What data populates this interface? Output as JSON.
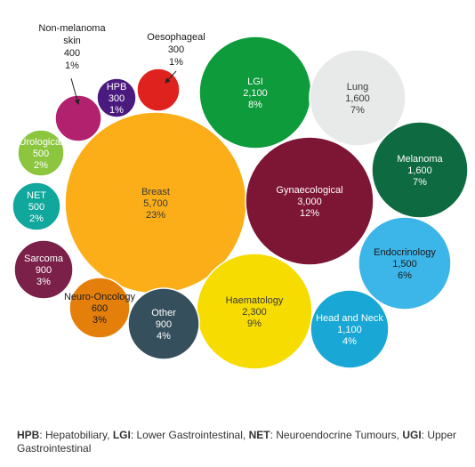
{
  "chart_data": {
    "type": "bubble",
    "unit_note": "",
    "bubbles": [
      {
        "name": "Breast",
        "value": "5,700",
        "percent": "23%",
        "color": "#FBAE17",
        "text_color": "#3a3a3a"
      },
      {
        "name": "Gynaecological",
        "value": "3,000",
        "percent": "12%",
        "color": "#7D1535",
        "text_color": "#ffffff"
      },
      {
        "name": "Haematology",
        "value": "2,300",
        "percent": "9%",
        "color": "#F6DC00",
        "text_color": "#3a3a3a"
      },
      {
        "name": "LGI",
        "value": "2,100",
        "percent": "8%",
        "color": "#0E9B3B",
        "text_color": "#ffffff"
      },
      {
        "name": "Lung",
        "value": "1,600",
        "percent": "7%",
        "color": "#E8EAEA",
        "text_color": "#3a3a3a"
      },
      {
        "name": "Melanoma",
        "value": "1,600",
        "percent": "7%",
        "color": "#0E6A40",
        "text_color": "#ffffff"
      },
      {
        "name": "Endocrinology",
        "value": "1,500",
        "percent": "6%",
        "color": "#3CB5E9",
        "text_color": "#1a1a1a"
      },
      {
        "name": "Head and Neck",
        "value": "1,100",
        "percent": "4%",
        "color": "#19A8D5",
        "text_color": "#ffffff"
      },
      {
        "name": "Other",
        "value": "900",
        "percent": "4%",
        "color": "#354F5C",
        "text_color": "#ffffff"
      },
      {
        "name": "Sarcoma",
        "value": "900",
        "percent": "3%",
        "color": "#7B2149",
        "text_color": "#ffffff"
      },
      {
        "name": "Neuro-Oncology",
        "value": "600",
        "percent": "3%",
        "color": "#E57F0B",
        "text_color": "#1a1a1a"
      },
      {
        "name": "Urological",
        "value": "500",
        "percent": "2%",
        "color": "#8CC63F",
        "text_color": "#ffffff"
      },
      {
        "name": "NET",
        "value": "500",
        "percent": "2%",
        "color": "#10A79C",
        "text_color": "#ffffff"
      },
      {
        "name": "Non-melanoma skin",
        "label_lines": [
          "Non-melanoma",
          "skin"
        ],
        "value": "400",
        "percent": "1%",
        "color": "#B2216E",
        "text_color": "#1a1a1a",
        "label_outside": true
      },
      {
        "name": "HPB",
        "value": "300",
        "percent": "1%",
        "color": "#4B1A7E",
        "text_color": "#ffffff"
      },
      {
        "name": "Oesophageal",
        "value": "300",
        "percent": "1%",
        "color": "#E0221E",
        "text_color": "#1a1a1a",
        "label_outside": true
      }
    ]
  },
  "footnote": [
    {
      "abbr": "HPB",
      "text": ": Hepatobiliary, "
    },
    {
      "abbr": "LGI",
      "text": ": Lower Gastrointestinal, "
    },
    {
      "abbr": "NET",
      "text": ": Neuroendocrine Tumours, "
    },
    {
      "abbr": "UGI",
      "text": ": Upper Gastrointestinal"
    }
  ]
}
